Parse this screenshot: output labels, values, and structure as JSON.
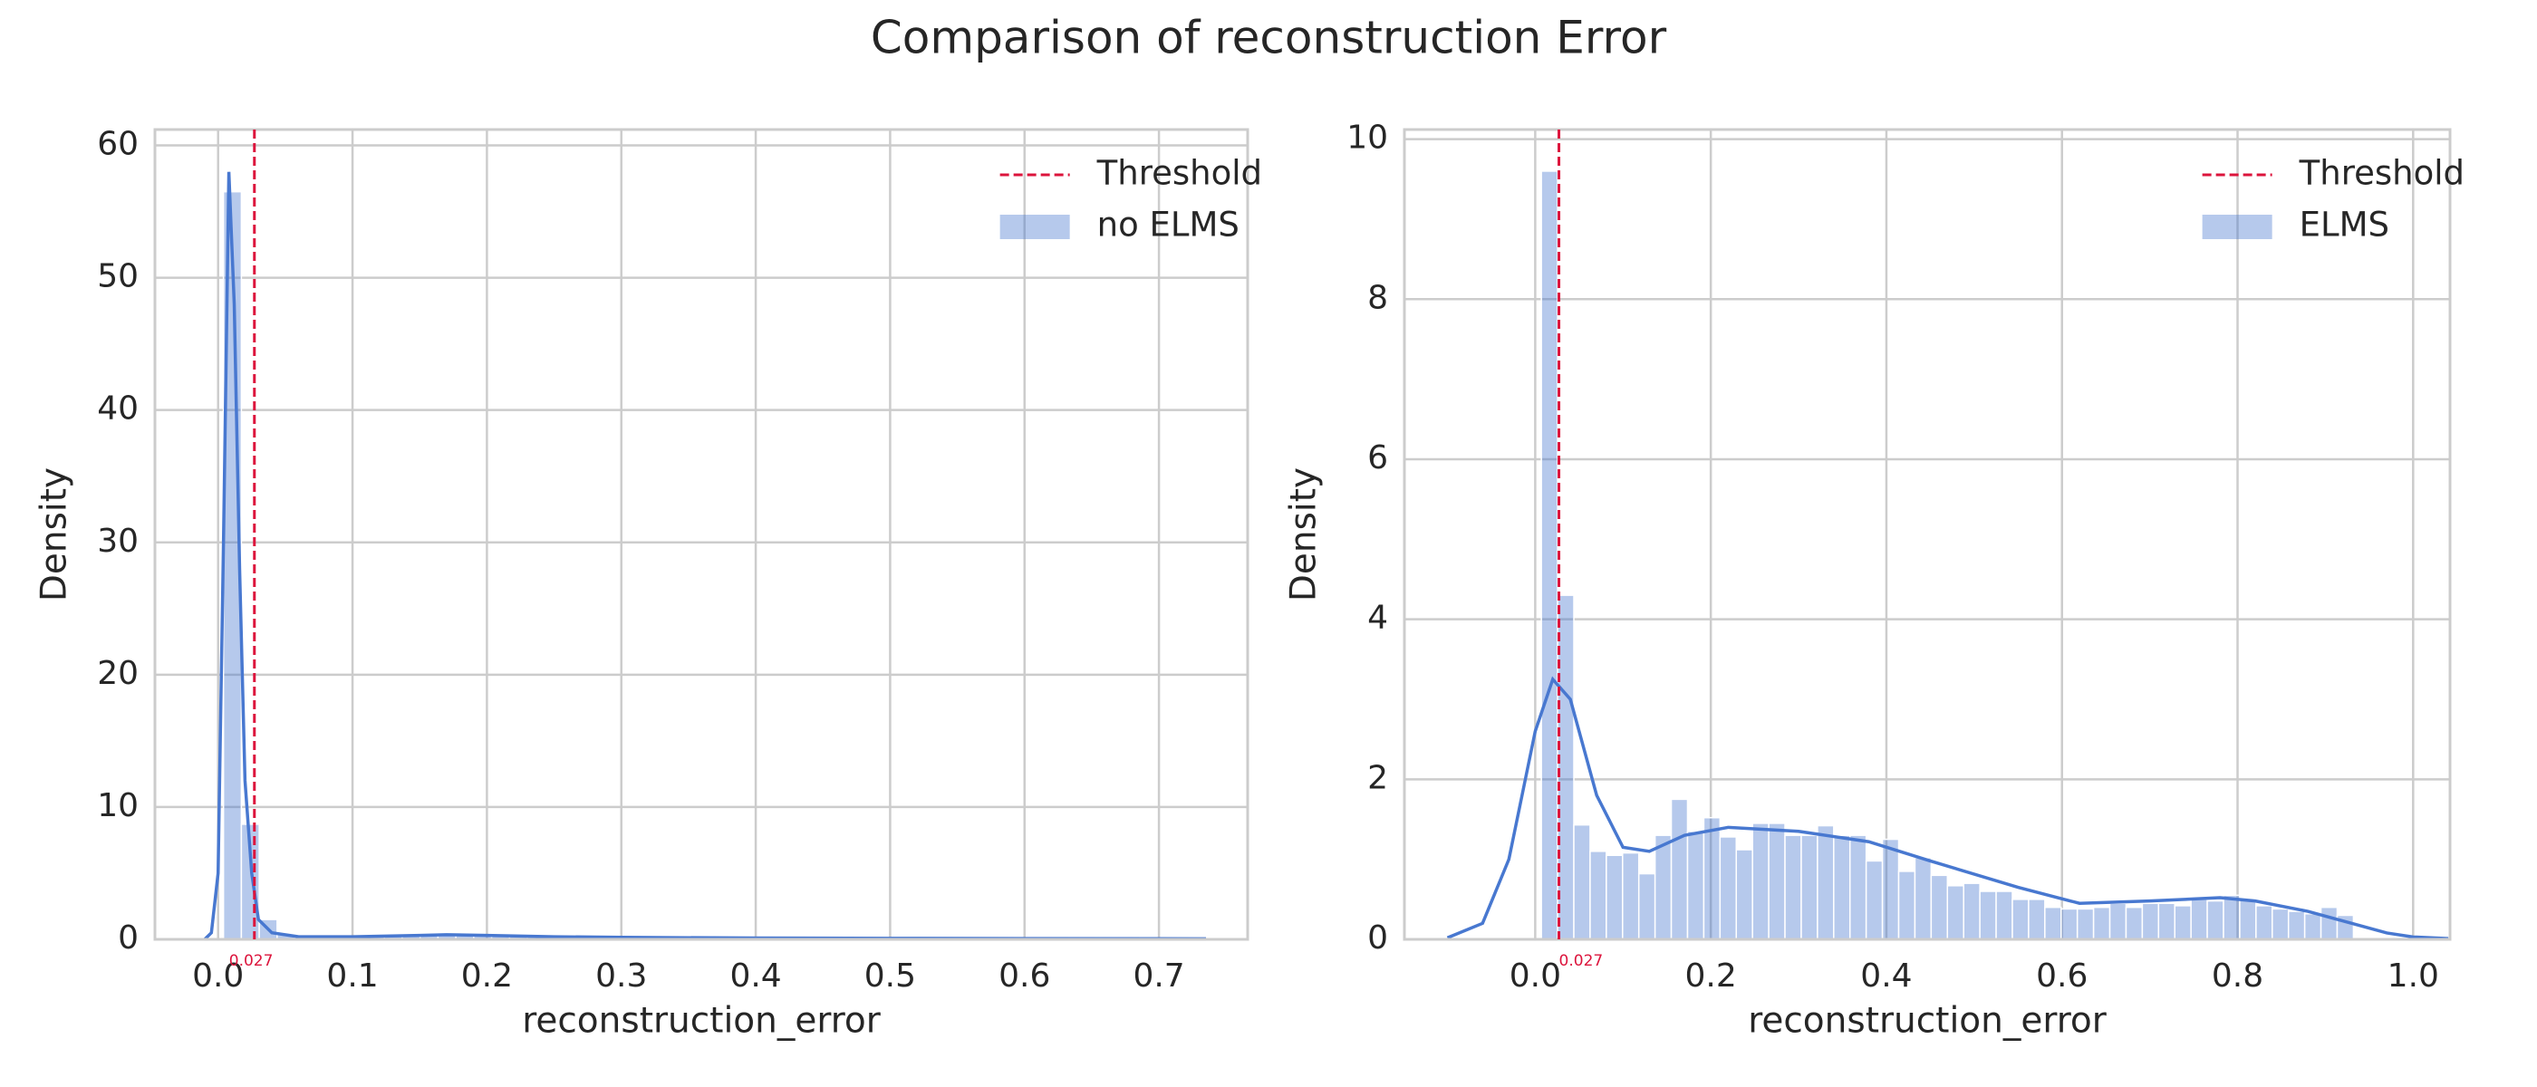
{
  "title": "Comparison of reconstruction Error",
  "chart_data": [
    {
      "type": "histogram",
      "name": "no ELMS",
      "color": "#4878d0",
      "xlabel": "reconstruction_error",
      "ylabel": "Density",
      "xlim": [
        -0.047,
        0.766
      ],
      "ylim": [
        0,
        61.2
      ],
      "xticks": [
        {
          "value": 0,
          "label": "0.0"
        },
        0.1,
        0.2,
        0.3,
        0.4,
        0.5,
        0.6,
        0.7
      ],
      "yticks": [
        0,
        10,
        20,
        30,
        40,
        50,
        60
      ],
      "grid": true,
      "legend": "upper right",
      "bins": [
        0.004,
        0.0173,
        0.0306,
        0.0439,
        0.0572,
        0.0705,
        0.0838,
        0.0971,
        0.1104,
        0.1237,
        0.137,
        0.1503,
        0.1636,
        0.1769,
        0.1902,
        0.2035,
        0.2168,
        0.2301,
        0.2434,
        0.2567,
        0.27,
        0.2833,
        0.2966,
        0.3099,
        0.3232,
        0.3365,
        0.3498,
        0.3631,
        0.3764,
        0.3897,
        0.403,
        0.4163,
        0.4296,
        0.4429,
        0.4562,
        0.4695,
        0.4828,
        0.4961,
        0.5094,
        0.5227,
        0.536,
        0.5493,
        0.5626,
        0.5759,
        0.5892,
        0.6025,
        0.6158,
        0.6291,
        0.6424,
        0.6557,
        0.669,
        0.6823,
        0.6956,
        0.7089,
        0.7222,
        0.7355
      ],
      "values": [
        56.5,
        8.7,
        1.5,
        0.4,
        0.3,
        0.25,
        0.3,
        0.2,
        0.2,
        0.25,
        0.3,
        0.3,
        0.35,
        0.4,
        0.35,
        0.3,
        0.3,
        0.25,
        0.25,
        0.3,
        0.2,
        0.2,
        0.2,
        0.15,
        0.15,
        0.15,
        0.1,
        0.12,
        0.1,
        0.1,
        0.1,
        0.1,
        0.08,
        0.1,
        0.08,
        0.08,
        0.08,
        0.07,
        0.08,
        0.07,
        0.07,
        0.06,
        0.06,
        0.07,
        0.06,
        0.06,
        0.05,
        0.06,
        0.05,
        0.05,
        0.05,
        0.05,
        0.04,
        0.05,
        0.04
      ],
      "kde": {
        "x": [
          -0.01,
          -0.005,
          0.0,
          0.004,
          0.008,
          0.012,
          0.016,
          0.02,
          0.025,
          0.03,
          0.04,
          0.06,
          0.1,
          0.15,
          0.17,
          0.2,
          0.25,
          0.3,
          0.4,
          0.5,
          0.6,
          0.7,
          0.735
        ],
        "values": [
          0,
          0.5,
          5,
          30,
          58,
          48,
          28,
          12,
          5,
          1.5,
          0.5,
          0.2,
          0.2,
          0.3,
          0.35,
          0.3,
          0.2,
          0.15,
          0.1,
          0.08,
          0.06,
          0.05,
          0.04
        ]
      },
      "threshold": {
        "name": "Threshold",
        "value": 0.027,
        "color": "#dc143c"
      }
    },
    {
      "type": "histogram",
      "name": "ELMS",
      "color": "#4878d0",
      "xlabel": "reconstruction_error",
      "ylabel": "Density",
      "xlim": [
        -0.149,
        1.042
      ],
      "ylim": [
        0,
        10.12
      ],
      "xticks": [
        {
          "value": 0,
          "label": "0.0"
        },
        0.2,
        0.4,
        0.6,
        0.8,
        {
          "value": 1,
          "label": "1.0"
        }
      ],
      "yticks": [
        0,
        2,
        4,
        6,
        8,
        10
      ],
      "grid": true,
      "legend": "upper right",
      "bins": [
        0.007,
        0.0255,
        0.044,
        0.0625,
        0.081,
        0.0995,
        0.118,
        0.1365,
        0.155,
        0.1735,
        0.192,
        0.2105,
        0.229,
        0.2475,
        0.266,
        0.2845,
        0.303,
        0.3215,
        0.34,
        0.3585,
        0.377,
        0.3955,
        0.414,
        0.4325,
        0.451,
        0.4695,
        0.488,
        0.5065,
        0.525,
        0.5435,
        0.562,
        0.5805,
        0.599,
        0.6175,
        0.636,
        0.6545,
        0.673,
        0.6915,
        0.71,
        0.7285,
        0.747,
        0.7655,
        0.784,
        0.8025,
        0.821,
        0.8395,
        0.858,
        0.8765,
        0.895,
        0.9135,
        0.932
      ],
      "values": [
        9.6,
        4.3,
        1.43,
        1.1,
        1.05,
        1.08,
        0.82,
        1.3,
        1.75,
        1.35,
        1.52,
        1.28,
        1.12,
        1.45,
        1.45,
        1.3,
        1.3,
        1.42,
        1.3,
        1.3,
        0.98,
        1.25,
        0.85,
        1.02,
        0.8,
        0.67,
        0.7,
        0.6,
        0.6,
        0.5,
        0.5,
        0.4,
        0.38,
        0.38,
        0.4,
        0.45,
        0.4,
        0.45,
        0.45,
        0.42,
        0.5,
        0.48,
        0.55,
        0.5,
        0.42,
        0.38,
        0.35,
        0.32,
        0.4,
        0.3
      ],
      "kde": {
        "x": [
          -0.1,
          -0.06,
          -0.03,
          0.0,
          0.02,
          0.04,
          0.07,
          0.1,
          0.13,
          0.17,
          0.22,
          0.3,
          0.38,
          0.45,
          0.55,
          0.62,
          0.7,
          0.78,
          0.82,
          0.88,
          0.93,
          0.97,
          1.0,
          1.04
        ],
        "values": [
          0.02,
          0.2,
          1.0,
          2.6,
          3.25,
          3.0,
          1.8,
          1.15,
          1.1,
          1.3,
          1.4,
          1.35,
          1.22,
          0.98,
          0.65,
          0.45,
          0.48,
          0.52,
          0.48,
          0.35,
          0.2,
          0.08,
          0.03,
          0.01
        ]
      },
      "threshold": {
        "name": "Threshold",
        "value": 0.027,
        "color": "#dc143c"
      }
    }
  ]
}
